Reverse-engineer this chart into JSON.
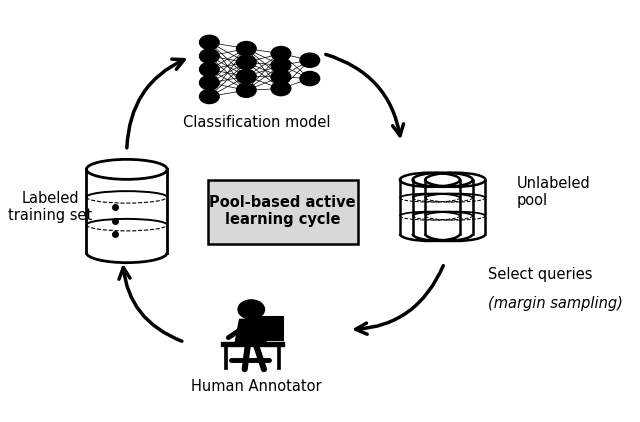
{
  "title": "Pool-based active\nlearning cycle",
  "labels": {
    "classification_model": "Classification model",
    "labeled_training_set": "Labeled\ntraining set",
    "unlabeled_pool": "Unlabeled\npool",
    "select_queries_line1": "Select queries",
    "select_queries_line2": "(margin sampling)",
    "human_annotator": "Human Annotator"
  },
  "background_color": "#ffffff",
  "icon_color": "#000000",
  "arrow_color": "#000000"
}
